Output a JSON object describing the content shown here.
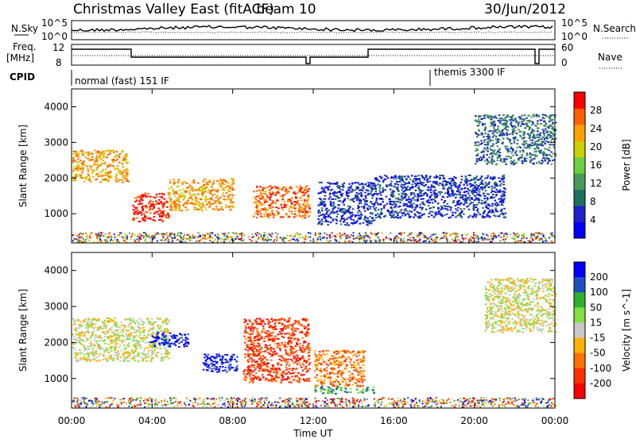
{
  "header": {
    "title": "Christmas Valley East (fitACF)",
    "beam": "beam 10",
    "date": "30/Jun/2012"
  },
  "top_panels": {
    "nsky_label": "N.Sky",
    "nsky_ticks": [
      "10^5",
      "10^0"
    ],
    "nsearch_label": "N.Search",
    "nsearch_ticks": [
      "10^5",
      "10^0"
    ],
    "freq_label_1": "Freq.",
    "freq_label_2": "[MHz]",
    "freq_ticks": [
      "12",
      "8"
    ],
    "nave_label": "Nave",
    "nave_ticks": [
      "60",
      "0"
    ],
    "cpid_label": "CPID",
    "cpid_modes": [
      "normal (fast) 151 IF",
      "themis 3300 IF"
    ]
  },
  "chart_data": [
    {
      "type": "heatmap",
      "title": "",
      "ylabel": "Slant Range [km]",
      "xlabel": "",
      "y_ticks": [
        "1000",
        "2000",
        "3000",
        "4000"
      ],
      "ylim": [
        180,
        4500
      ],
      "xlim": [
        0,
        24
      ],
      "colorbar": {
        "label": "Power [dB]",
        "ticks": [
          "4",
          "8",
          "12",
          "16",
          "20",
          "24",
          "28"
        ],
        "colors": [
          "#0000ff",
          "#2020cc",
          "#207060",
          "#4a9a5a",
          "#6ccf40",
          "#c8d000",
          "#ffa000",
          "#ff6000",
          "#ff0000"
        ]
      },
      "regions": [
        {
          "t0": 0.0,
          "t1": 2.8,
          "r0": 1900,
          "r1": 2800,
          "level": 6
        },
        {
          "t0": 3.0,
          "t1": 4.8,
          "r0": 800,
          "r1": 1600,
          "level": 8
        },
        {
          "t0": 4.8,
          "t1": 8.0,
          "r0": 1100,
          "r1": 2000,
          "level": 6
        },
        {
          "t0": 9.0,
          "t1": 11.8,
          "r0": 900,
          "r1": 1800,
          "level": 7
        },
        {
          "t0": 12.2,
          "t1": 15.0,
          "r0": 700,
          "r1": 1900,
          "level": 1
        },
        {
          "t0": 15.0,
          "t1": 21.5,
          "r0": 900,
          "r1": 2100,
          "level": 1
        },
        {
          "t0": 20.0,
          "t1": 24.0,
          "r0": 2400,
          "r1": 3800,
          "level": 2
        }
      ]
    },
    {
      "type": "heatmap",
      "title": "",
      "ylabel": "Slant Range [km]",
      "xlabel": "Time UT",
      "x_ticks": [
        "00:00",
        "04:00",
        "08:00",
        "12:00",
        "16:00",
        "20:00",
        "00:00"
      ],
      "y_ticks": [
        "1000",
        "2000",
        "3000",
        "4000"
      ],
      "ylim": [
        180,
        4500
      ],
      "xlim": [
        0,
        24
      ],
      "colorbar": {
        "label": "Velocity [m s^-1]",
        "ticks": [
          "200",
          "100",
          "50",
          "15",
          "-15",
          "-50",
          "-100",
          "-200"
        ],
        "colors": [
          "#0000ff",
          "#2050c0",
          "#30b030",
          "#80e040",
          "#c8c8c8",
          "#ffb000",
          "#ff7000",
          "#ff3000",
          "#ff0000"
        ]
      },
      "regions": [
        {
          "t0": 0.0,
          "t1": 4.8,
          "r0": 1500,
          "r1": 2700,
          "level": 4
        },
        {
          "t0": 3.8,
          "t1": 5.8,
          "r0": 1900,
          "r1": 2300,
          "level": 0
        },
        {
          "t0": 6.5,
          "t1": 8.2,
          "r0": 1200,
          "r1": 1700,
          "level": 0
        },
        {
          "t0": 8.5,
          "t1": 11.8,
          "r0": 900,
          "r1": 2700,
          "level": 7
        },
        {
          "t0": 12.0,
          "t1": 14.5,
          "r0": 800,
          "r1": 1800,
          "level": 6
        },
        {
          "t0": 12.0,
          "t1": 15.0,
          "r0": 600,
          "r1": 800,
          "level": 2
        },
        {
          "t0": 20.5,
          "t1": 24.0,
          "r0": 2300,
          "r1": 3800,
          "level": 4
        }
      ]
    }
  ]
}
